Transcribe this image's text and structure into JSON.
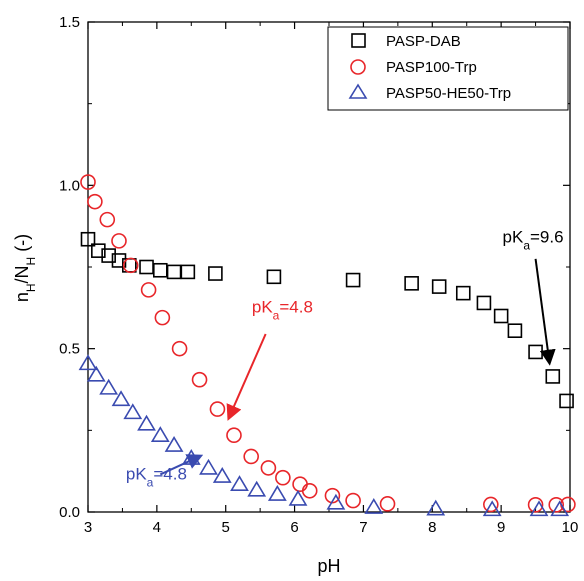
{
  "chart_data": {
    "type": "scatter",
    "xlabel": "pH",
    "ylabel": {
      "main": "n",
      "sub1": "H",
      "slash": "/N",
      "sub2": "H",
      "unit": " (-)"
    },
    "xlim": [
      3,
      10
    ],
    "ylim": [
      0,
      1.5
    ],
    "xticks": [
      "3",
      "4",
      "5",
      "6",
      "7",
      "8",
      "9",
      "10"
    ],
    "yticks": [
      "0.0",
      "0.5",
      "1.0",
      "1.5"
    ],
    "legend_position": "top-right",
    "colors": {
      "PASP-DAB": "#000000",
      "PASP100-Trp": "#e8262a",
      "PASP50-HE50-Trp": "#3a4bb0"
    },
    "series": [
      {
        "name": "PASP-DAB",
        "marker": "square",
        "x": [
          3.0,
          3.15,
          3.3,
          3.45,
          3.6,
          3.85,
          4.05,
          4.25,
          4.45,
          4.85,
          5.7,
          6.85,
          7.7,
          8.1,
          8.45,
          8.75,
          9.0,
          9.2,
          9.5,
          9.75,
          9.95
        ],
        "y": [
          0.835,
          0.8,
          0.785,
          0.77,
          0.755,
          0.75,
          0.74,
          0.735,
          0.735,
          0.73,
          0.72,
          0.71,
          0.7,
          0.69,
          0.67,
          0.64,
          0.6,
          0.555,
          0.49,
          0.415,
          0.34
        ]
      },
      {
        "name": "PASP100-Trp",
        "marker": "circle",
        "x": [
          3.0,
          3.1,
          3.28,
          3.45,
          3.62,
          3.88,
          4.08,
          4.33,
          4.62,
          4.88,
          5.12,
          5.37,
          5.62,
          5.83,
          6.08,
          6.22,
          6.55,
          6.85,
          7.35,
          8.85,
          9.5,
          9.8,
          9.97
        ],
        "y": [
          1.01,
          0.95,
          0.895,
          0.83,
          0.755,
          0.68,
          0.595,
          0.5,
          0.405,
          0.315,
          0.235,
          0.17,
          0.135,
          0.105,
          0.085,
          0.065,
          0.05,
          0.035,
          0.025,
          0.023,
          0.022,
          0.022,
          0.023
        ]
      },
      {
        "name": "PASP50-HE50-Trp",
        "marker": "triangle",
        "x": [
          3.0,
          3.12,
          3.3,
          3.48,
          3.65,
          3.85,
          4.05,
          4.25,
          4.5,
          4.75,
          4.95,
          5.2,
          5.45,
          5.75,
          6.05,
          6.6,
          7.15,
          8.05,
          8.87,
          9.55,
          9.85
        ],
        "y": [
          0.455,
          0.42,
          0.38,
          0.345,
          0.305,
          0.27,
          0.235,
          0.205,
          0.165,
          0.135,
          0.11,
          0.085,
          0.068,
          0.055,
          0.04,
          0.028,
          0.015,
          0.01,
          0.008,
          0.008,
          0.008
        ]
      }
    ],
    "annotations": [
      {
        "text_main": "pK",
        "text_sub": "a",
        "text_tail": "=4.8",
        "color": "#e8262a",
        "x": 5.38,
        "y": 0.61,
        "arrow_from": [
          5.58,
          0.545
        ],
        "arrow_to": [
          5.05,
          0.29
        ]
      },
      {
        "text_main": "pK",
        "text_sub": "a",
        "text_tail": "=4.8",
        "color": "#3a4bb0",
        "x": 3.55,
        "y": 0.1,
        "arrow_from": [
          4.05,
          0.115
        ],
        "arrow_to": [
          4.62,
          0.17
        ]
      },
      {
        "text_main": "pK",
        "text_sub": "a",
        "text_tail": "=9.6",
        "color": "#000000",
        "x": 9.02,
        "y": 0.825,
        "arrow_from": [
          9.5,
          0.775
        ],
        "arrow_to": [
          9.7,
          0.46
        ]
      }
    ]
  }
}
